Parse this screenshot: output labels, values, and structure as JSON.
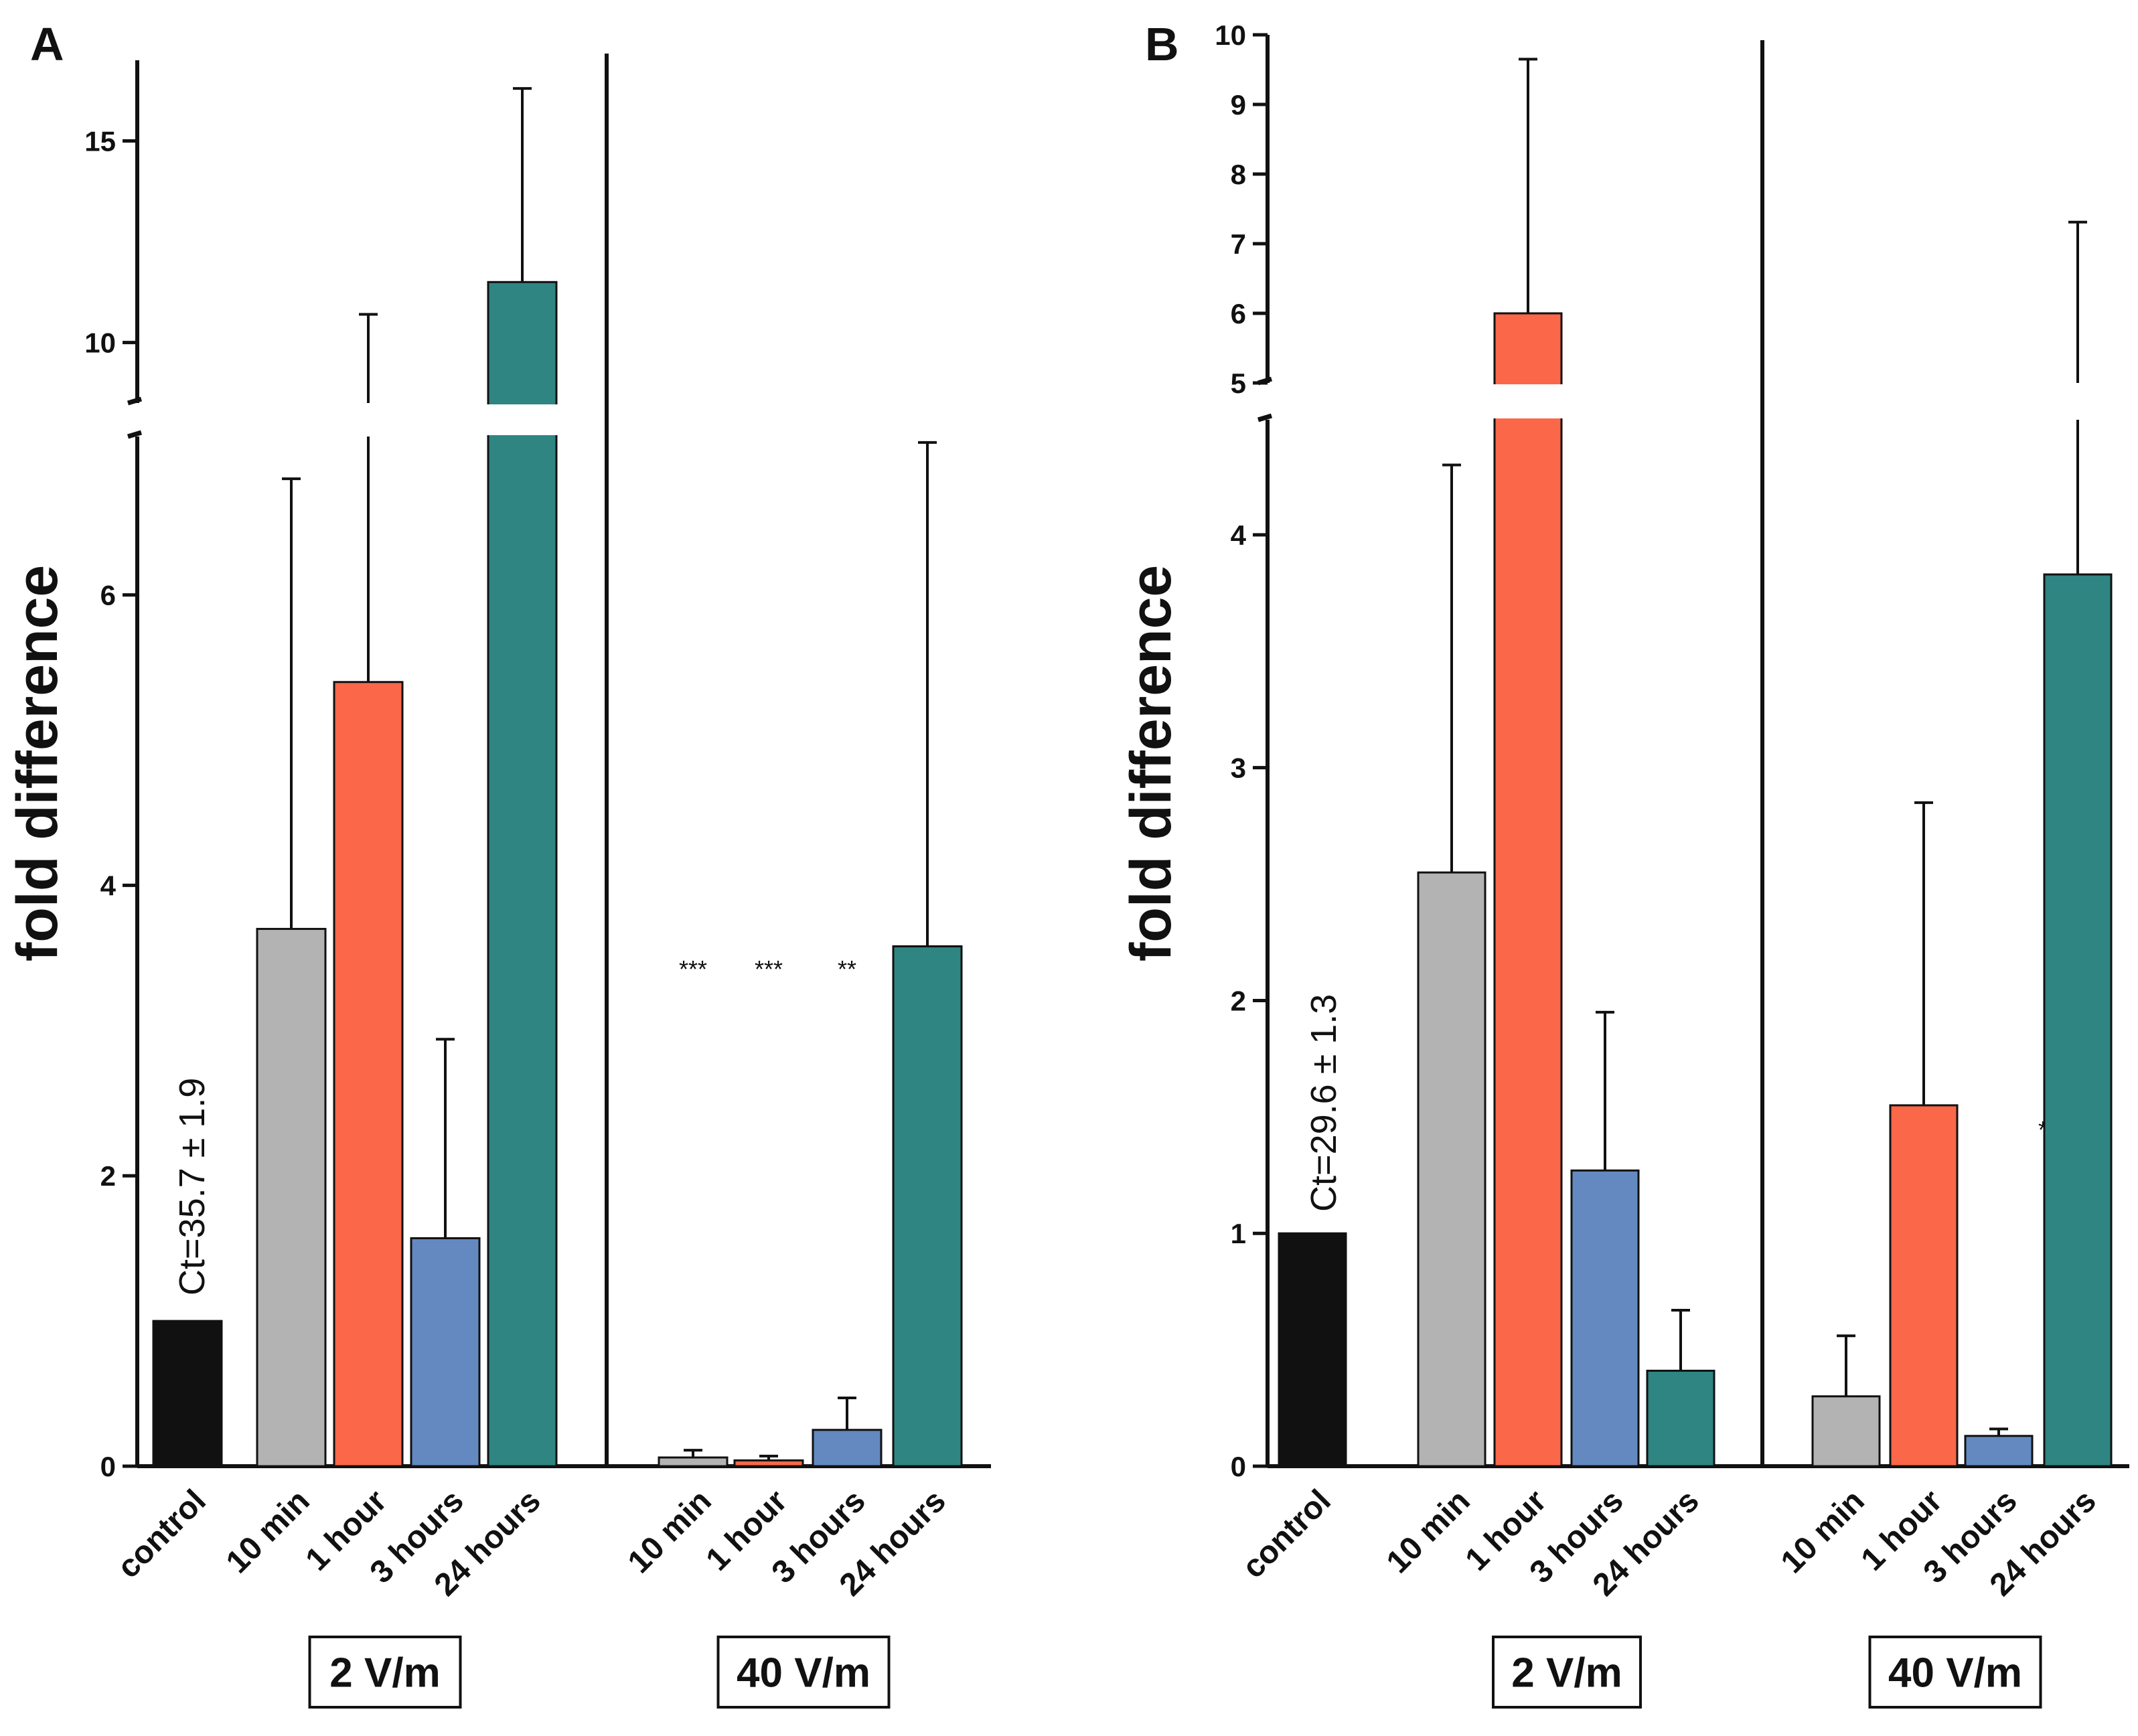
{
  "chart_data": [
    {
      "panel": "A",
      "type": "bar",
      "ylabel": "fold difference",
      "y_axis_break": {
        "lower_range": [
          0,
          7.1
        ],
        "upper_range": [
          8.5,
          17
        ]
      },
      "lower_ticks": [
        0,
        2,
        4,
        6
      ],
      "upper_ticks": [
        10,
        15
      ],
      "ct_annotation": "Ct=35.7 ± 1.9",
      "groups": [
        "2 V/m",
        "40 V/m"
      ],
      "bars": [
        {
          "category": "control",
          "group": "",
          "value": 1.0,
          "error": 0,
          "color": "#111111",
          "stars": ""
        },
        {
          "category": "10 min",
          "group": "2 V/m",
          "value": 3.7,
          "error": 3.1,
          "color": "#b3b3b3",
          "stars": ""
        },
        {
          "category": "1 hour",
          "group": "2 V/m",
          "value": 5.4,
          "error": 5.3,
          "color": "#fa6749",
          "stars": ""
        },
        {
          "category": "3 hours",
          "group": "2 V/m",
          "value": 1.57,
          "error": 1.37,
          "color": "#6389c0",
          "stars": ""
        },
        {
          "category": "24 hours",
          "group": "2 V/m",
          "value": 11.5,
          "error": 4.8,
          "color": "#2e8582",
          "stars": ""
        },
        {
          "category": "10 min",
          "group": "40 V/m",
          "value": 0.06,
          "error": 0.05,
          "color": "#b3b3b3",
          "stars": "***"
        },
        {
          "category": "1 hour",
          "group": "40 V/m",
          "value": 0.04,
          "error": 0.03,
          "color": "#fa6749",
          "stars": "***"
        },
        {
          "category": "3 hours",
          "group": "40 V/m",
          "value": 0.25,
          "error": 0.22,
          "color": "#6389c0",
          "stars": "**"
        },
        {
          "category": "24 hours",
          "group": "40 V/m",
          "value": 3.58,
          "error": 3.47,
          "color": "#2e8582",
          "stars": ""
        }
      ]
    },
    {
      "panel": "B",
      "type": "bar",
      "ylabel": "fold difference",
      "y_axis_break": {
        "lower_range": [
          0,
          4.5
        ],
        "upper_range": [
          5,
          10
        ]
      },
      "lower_ticks": [
        0,
        1,
        2,
        3,
        4
      ],
      "upper_ticks": [
        5,
        6,
        7,
        8,
        9,
        10
      ],
      "ct_annotation": "Ct=29.6 ± 1.3",
      "groups": [
        "2 V/m",
        "40 V/m"
      ],
      "bars": [
        {
          "category": "control",
          "group": "",
          "value": 1.0,
          "error": 0,
          "color": "#111111",
          "stars": ""
        },
        {
          "category": "10 min",
          "group": "2 V/m",
          "value": 2.55,
          "error": 1.75,
          "color": "#b3b3b3",
          "stars": ""
        },
        {
          "category": "1 hour",
          "group": "2 V/m",
          "value": 6.0,
          "error": 3.65,
          "color": "#fa6749",
          "stars": ""
        },
        {
          "category": "3 hours",
          "group": "2 V/m",
          "value": 1.27,
          "error": 0.68,
          "color": "#6389c0",
          "stars": ""
        },
        {
          "category": "24 hours",
          "group": "2 V/m",
          "value": 0.41,
          "error": 0.26,
          "color": "#2e8582",
          "stars": ""
        },
        {
          "category": "10 min",
          "group": "40 V/m",
          "value": 0.3,
          "error": 0.26,
          "color": "#b3b3b3",
          "stars": ""
        },
        {
          "category": "1 hour",
          "group": "40 V/m",
          "value": 1.55,
          "error": 1.3,
          "color": "#fa6749",
          "stars": ""
        },
        {
          "category": "3 hours",
          "group": "40 V/m",
          "value": 0.13,
          "error": 0.03,
          "color": "#6389c0",
          "stars": "***"
        },
        {
          "category": "24 hours",
          "group": "40 V/m",
          "value": 3.83,
          "error": 3.48,
          "color": "#2e8582",
          "stars": ""
        }
      ]
    }
  ]
}
